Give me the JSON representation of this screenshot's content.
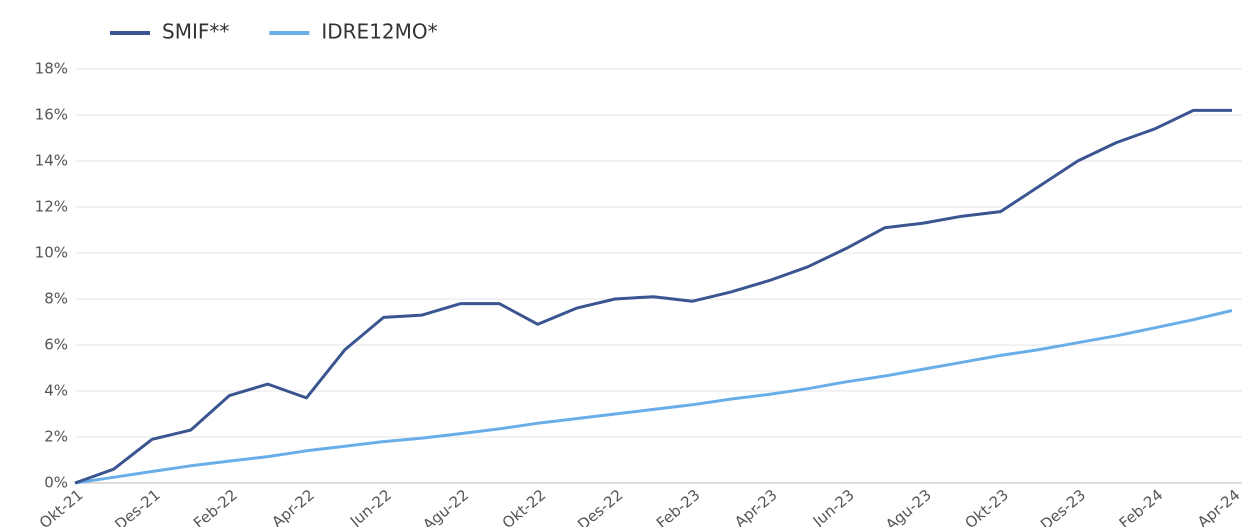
{
  "chart_data": {
    "type": "line",
    "categories": [
      "Okt-21",
      null,
      "Des-21",
      null,
      "Feb-22",
      null,
      "Apr-22",
      null,
      "Jun-22",
      null,
      "Agu-22",
      null,
      "Okt-22",
      null,
      "Des-22",
      null,
      "Feb-23",
      null,
      "Apr-23",
      null,
      "Jun-23",
      null,
      "Agu-23",
      null,
      "Okt-23",
      null,
      "Des-23",
      null,
      "Feb-24",
      null,
      "Apr-24"
    ],
    "series": [
      {
        "name": "SMIF**",
        "color": "#3b5591",
        "values": [
          0,
          0.6,
          1.9,
          2.3,
          3.8,
          4.3,
          3.7,
          5.8,
          7.2,
          7.3,
          7.8,
          7.8,
          6.9,
          7.6,
          8.0,
          8.1,
          7.9,
          8.3,
          8.8,
          9.4,
          10.2,
          11.1,
          11.3,
          11.6,
          11.8,
          12.9,
          14.0,
          14.8,
          15.4,
          16.2,
          16.2
        ]
      },
      {
        "name": "IDRE12MO*",
        "color": "#6aaee8",
        "values": [
          0,
          0.25,
          0.5,
          0.75,
          0.95,
          1.15,
          1.4,
          1.6,
          1.8,
          1.95,
          2.15,
          2.35,
          2.6,
          2.8,
          3.0,
          3.2,
          3.4,
          3.65,
          3.85,
          4.1,
          4.4,
          4.65,
          4.95,
          5.25,
          5.55,
          5.8,
          6.1,
          6.4,
          6.75,
          7.1,
          7.5
        ]
      }
    ],
    "ylim": [
      0,
      18
    ],
    "yticks": [
      {
        "value": 0,
        "label": "0%"
      },
      {
        "value": 2,
        "label": "2%"
      },
      {
        "value": 4,
        "label": "4%"
      },
      {
        "value": 6,
        "label": "6%"
      },
      {
        "value": 8,
        "label": "8%"
      },
      {
        "value": 10,
        "label": "10%"
      },
      {
        "value": 12,
        "label": "12%"
      },
      {
        "value": 14,
        "label": "14%"
      },
      {
        "value": 16,
        "label": "16%"
      },
      {
        "value": 18,
        "label": "18%"
      }
    ],
    "grid": true,
    "legend": "top"
  }
}
